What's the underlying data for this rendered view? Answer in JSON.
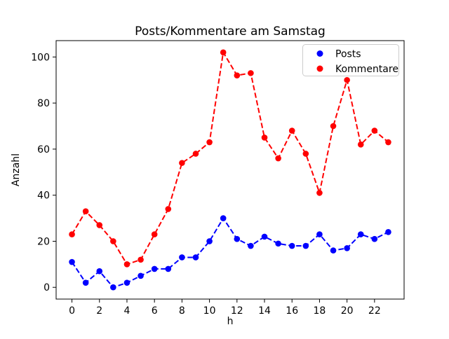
{
  "chart_data": {
    "type": "line",
    "title": "Posts/Kommentare am Samstag",
    "xlabel": "h",
    "ylabel": "Anzahl",
    "x": [
      0,
      1,
      2,
      3,
      4,
      5,
      6,
      7,
      8,
      9,
      10,
      11,
      12,
      13,
      14,
      15,
      16,
      17,
      18,
      19,
      20,
      21,
      22,
      23
    ],
    "series": [
      {
        "name": "Posts",
        "color": "#0000ff",
        "values": [
          11,
          2,
          7,
          0,
          2,
          5,
          8,
          8,
          13,
          13,
          20,
          30,
          21,
          18,
          22,
          19,
          18,
          18,
          23,
          16,
          17,
          23,
          21,
          24
        ]
      },
      {
        "name": "Kommentare",
        "color": "#ff0000",
        "values": [
          23,
          33,
          27,
          20,
          10,
          12,
          23,
          34,
          54,
          58,
          63,
          102,
          92,
          93,
          65,
          56,
          68,
          58,
          41,
          70,
          90,
          62,
          68,
          63
        ]
      }
    ],
    "line_style": "dashed",
    "marker": "circle",
    "xticks": [
      0,
      2,
      4,
      6,
      8,
      10,
      12,
      14,
      16,
      18,
      20,
      22
    ],
    "yticks": [
      0,
      20,
      40,
      60,
      80,
      100
    ],
    "xlim": [
      -1.15,
      24.15
    ],
    "ylim": [
      -5.1,
      107.1
    ],
    "legend_position": "upper right",
    "grid": false,
    "colors": {
      "spine": "#000000",
      "background": "#ffffff",
      "legend_border": "#cccccc"
    }
  }
}
